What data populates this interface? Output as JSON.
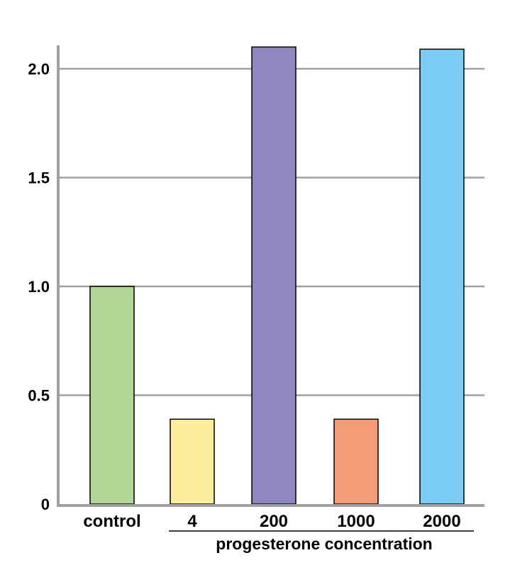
{
  "chart_data": {
    "type": "bar",
    "categories": [
      "control",
      "4",
      "200",
      "1000",
      "2000"
    ],
    "values": [
      1.0,
      0.39,
      2.1,
      0.39,
      2.09
    ],
    "colors": [
      "#b1d797",
      "#fdee9d",
      "#8e88bf",
      "#f39c76",
      "#7ccdf4"
    ],
    "ylim": [
      0,
      2.1
    ],
    "yticks": [
      0,
      0.5,
      1.0,
      1.5,
      2.0
    ],
    "ytick_labels": [
      "0",
      "0.5",
      "1.0",
      "1.5",
      "2.0"
    ],
    "grid": true,
    "group_label": "progesterone concentration",
    "group_categories": [
      "4",
      "200",
      "1000",
      "2000"
    ]
  }
}
